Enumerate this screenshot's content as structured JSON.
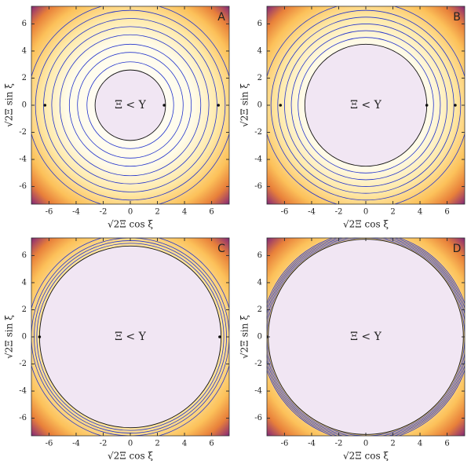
{
  "chart_data": [
    {
      "type": "contour",
      "label": "A",
      "region_label": "Ξ < Υ",
      "xlabel": "√2Ξ cos ξ",
      "ylabel": "√2Ξ sin ξ",
      "xlim": [
        -7.3,
        7.3
      ],
      "ylim": [
        -7.3,
        7.3
      ],
      "xticks": [
        -6,
        -4,
        -2,
        0,
        2,
        4,
        6
      ],
      "yticks": [
        -6,
        -4,
        -2,
        0,
        2,
        4,
        6
      ],
      "inner_radius": 2.6,
      "contours": [
        3.2,
        3.9,
        4.5,
        5.2,
        5.8,
        6.4,
        7.0,
        7.6
      ],
      "points": [
        -6.3,
        2.5,
        6.5
      ],
      "contour_color": "#2233cc"
    },
    {
      "type": "contour",
      "label": "B",
      "region_label": "Ξ < Υ",
      "xlabel": "√2Ξ cos ξ",
      "ylabel": "√2Ξ sin ξ",
      "xlim": [
        -7.3,
        7.3
      ],
      "ylim": [
        -7.3,
        7.3
      ],
      "xticks": [
        -6,
        -4,
        -2,
        0,
        2,
        4,
        6
      ],
      "yticks": [
        -6,
        -4,
        -2,
        0,
        2,
        4,
        6
      ],
      "inner_radius": 4.5,
      "contours": [
        5.0,
        5.5,
        6.0,
        6.5,
        7.0,
        7.6
      ],
      "points": [
        -6.3,
        4.5,
        6.6
      ],
      "contour_color": "#2233cc"
    },
    {
      "type": "contour",
      "label": "C",
      "region_label": "Ξ < Υ",
      "xlabel": "√2Ξ cos ξ",
      "ylabel": "√2Ξ sin ξ",
      "xlim": [
        -7.3,
        7.3
      ],
      "ylim": [
        -7.3,
        7.3
      ],
      "xticks": [
        -6,
        -4,
        -2,
        0,
        2,
        4,
        6
      ],
      "yticks": [
        -6,
        -4,
        -2,
        0,
        2,
        4,
        6
      ],
      "inner_radius": 6.7,
      "contours": [
        6.9,
        7.1,
        7.3,
        7.6
      ],
      "points": [
        -6.7,
        6.6
      ],
      "contour_color": "#2233cc"
    },
    {
      "type": "contour",
      "label": "D",
      "region_label": "Ξ < Υ",
      "xlabel": "√2Ξ cos ξ",
      "ylabel": "√2Ξ sin ξ",
      "xlim": [
        -7.3,
        7.3
      ],
      "ylim": [
        -7.3,
        7.3
      ],
      "xticks": [
        -6,
        -4,
        -2,
        0,
        2,
        4,
        6
      ],
      "yticks": [
        -6,
        -4,
        -2,
        0,
        2,
        4,
        6
      ],
      "inner_radius": 7.2,
      "contours": [
        7.3,
        7.4,
        7.5,
        7.6,
        7.7
      ],
      "points": [
        -7.3
      ],
      "contour_color": "#2233cc"
    }
  ]
}
